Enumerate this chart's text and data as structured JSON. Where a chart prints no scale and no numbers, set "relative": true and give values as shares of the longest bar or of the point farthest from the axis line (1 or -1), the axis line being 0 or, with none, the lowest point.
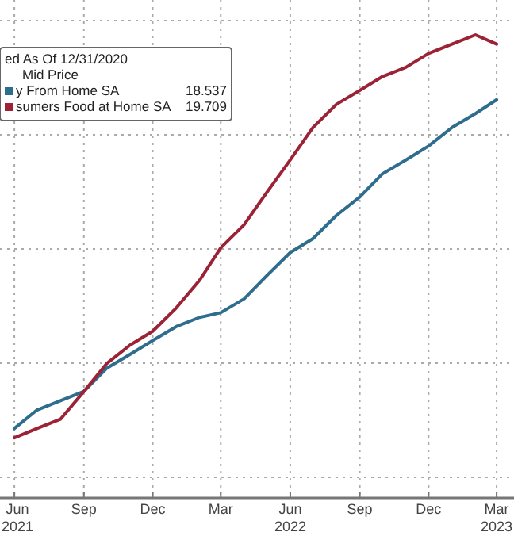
{
  "chart_data": {
    "type": "line",
    "relative": true,
    "legend_title": "ed As Of 12/31/2020",
    "annotations": [
      "Mid Price",
      "18.537",
      "19.709"
    ],
    "x": [
      "2021-06",
      "2021-07",
      "2021-08",
      "2021-09",
      "2021-10",
      "2021-11",
      "2021-12",
      "2022-01",
      "2022-02",
      "2022-03",
      "2022-04",
      "2022-05",
      "2022-06",
      "2022-07",
      "2022-08",
      "2022-09",
      "2022-10",
      "2022-11",
      "2022-12",
      "2023-01",
      "2023-02",
      "2023-03"
    ],
    "xlim": [
      "2021-05-13",
      "2023-03-24"
    ],
    "xticks": [
      {
        "value": "2021-06-01",
        "label": "Jun\n2021"
      },
      {
        "value": "2021-09-01",
        "label": "Sep"
      },
      {
        "value": "2021-12-01",
        "label": "Dec"
      },
      {
        "value": "2022-03-01",
        "label": "Mar"
      },
      {
        "value": "2022-06-01",
        "label": "Jun\n2022"
      },
      {
        "value": "2022-09-01",
        "label": "Sep"
      },
      {
        "value": "2022-12-01",
        "label": "Dec"
      },
      {
        "value": "2023-03-01",
        "label": "Mar\n2023"
      }
    ],
    "series": [
      {
        "name": "y From Home SA",
        "color": "#2f6d8e",
        "values": [
          0.15,
          0.19,
          0.21,
          0.23,
          0.28,
          0.31,
          0.34,
          0.37,
          0.39,
          0.4,
          0.43,
          0.48,
          0.53,
          0.56,
          0.61,
          0.65,
          0.7,
          0.73,
          0.76,
          0.8,
          0.83,
          0.86
        ]
      },
      {
        "name": "sumers Food at Home SA",
        "color": "#9b2335",
        "values": [
          0.13,
          0.15,
          0.17,
          0.23,
          0.29,
          0.33,
          0.36,
          0.41,
          0.47,
          0.54,
          0.59,
          0.66,
          0.73,
          0.8,
          0.85,
          0.88,
          0.91,
          0.93,
          0.96,
          0.98,
          1,
          0.98
        ]
      }
    ],
    "grid": true,
    "legend": "top left",
    "line_style": "solid",
    "marker": "none"
  }
}
